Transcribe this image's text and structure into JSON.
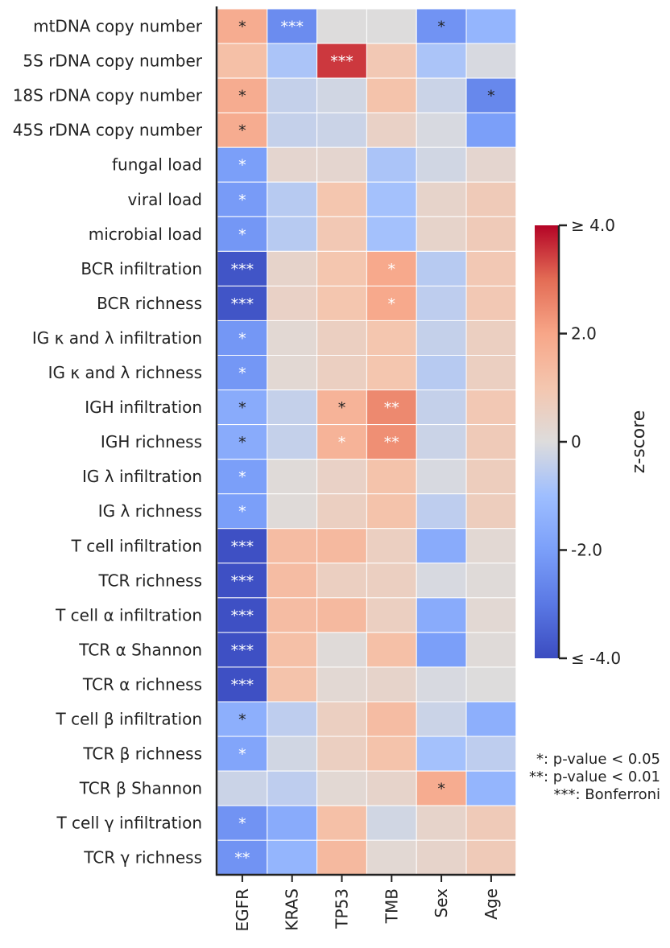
{
  "chart_data": {
    "type": "heatmap",
    "rows": [
      "mtDNA copy number",
      "5S rDNA copy number",
      "18S rDNA copy number",
      "45S rDNA copy number",
      "fungal load",
      "viral load",
      "microbial load",
      "BCR infiltration",
      "BCR richness",
      "IG κ and λ infiltration",
      "IG κ and λ richness",
      "IGH infiltration",
      "IGH richness",
      "IG λ infiltration",
      "IG λ richness",
      "T cell infiltration",
      "TCR richness",
      "T cell α infiltration",
      "TCR α Shannon",
      "TCR α richness",
      "T cell β infiltration",
      "TCR β richness",
      "TCR β Shannon",
      "T cell γ infiltration",
      "TCR γ richness"
    ],
    "columns": [
      "EGFR",
      "KRAS",
      "TP53",
      "TMB",
      "Sex",
      "Age"
    ],
    "values": [
      [
        1.8,
        -2.5,
        0.0,
        0.0,
        -2.3,
        -1.3
      ],
      [
        1.2,
        -0.8,
        3.5,
        0.9,
        -0.8,
        -0.1
      ],
      [
        1.8,
        -0.4,
        -0.2,
        1.1,
        -0.3,
        -2.6
      ],
      [
        1.8,
        -0.4,
        -0.3,
        0.5,
        -0.1,
        -2.0
      ],
      [
        -2.0,
        0.3,
        0.3,
        -0.8,
        -0.2,
        0.3
      ],
      [
        -2.1,
        -0.6,
        1.0,
        -0.9,
        0.4,
        0.8
      ],
      [
        -2.2,
        -0.6,
        0.9,
        -0.9,
        0.4,
        0.8
      ],
      [
        -3.8,
        0.4,
        1.0,
        1.9,
        -0.6,
        0.9
      ],
      [
        -3.8,
        0.5,
        1.0,
        1.9,
        -0.5,
        0.9
      ],
      [
        -2.2,
        0.2,
        0.6,
        1.0,
        -0.4,
        0.6
      ],
      [
        -2.2,
        0.2,
        0.6,
        1.0,
        -0.6,
        0.6
      ],
      [
        -1.6,
        -0.4,
        1.6,
        2.5,
        -0.4,
        0.9
      ],
      [
        -1.6,
        -0.4,
        1.6,
        2.4,
        -0.3,
        0.8
      ],
      [
        -2.0,
        0.1,
        0.5,
        1.1,
        -0.1,
        0.7
      ],
      [
        -2.0,
        0.1,
        0.6,
        1.1,
        -0.5,
        0.7
      ],
      [
        -3.9,
        1.3,
        1.4,
        0.6,
        -1.6,
        0.2
      ],
      [
        -3.9,
        1.3,
        0.6,
        0.6,
        -0.1,
        0.1
      ],
      [
        -3.9,
        1.3,
        1.4,
        0.6,
        -1.6,
        0.2
      ],
      [
        -3.9,
        1.2,
        0.1,
        1.2,
        -2.0,
        0.1
      ],
      [
        -3.9,
        1.1,
        0.2,
        0.4,
        -0.1,
        0.0
      ],
      [
        -1.5,
        -0.5,
        0.6,
        1.3,
        -0.3,
        -1.5
      ],
      [
        -1.8,
        -0.2,
        0.6,
        1.1,
        -0.9,
        -0.5
      ],
      [
        -0.3,
        -0.5,
        0.2,
        0.4,
        1.8,
        -1.3
      ],
      [
        -2.3,
        -1.6,
        1.2,
        -0.2,
        0.4,
        0.8
      ],
      [
        -2.3,
        -1.3,
        1.4,
        0.2,
        0.4,
        0.8
      ]
    ],
    "annotations": [
      [
        "*",
        "***",
        "",
        "",
        "*",
        ""
      ],
      [
        "",
        "",
        "***",
        "",
        "",
        ""
      ],
      [
        "*",
        "",
        "",
        "",
        "",
        "*"
      ],
      [
        "*",
        "",
        "",
        "",
        "",
        ""
      ],
      [
        "*",
        "",
        "",
        "",
        "",
        ""
      ],
      [
        "*",
        "",
        "",
        "",
        "",
        ""
      ],
      [
        "*",
        "",
        "",
        "",
        "",
        ""
      ],
      [
        "***",
        "",
        "",
        "*",
        "",
        ""
      ],
      [
        "***",
        "",
        "",
        "*",
        "",
        ""
      ],
      [
        "*",
        "",
        "",
        "",
        "",
        ""
      ],
      [
        "*",
        "",
        "",
        "",
        "",
        ""
      ],
      [
        "*",
        "",
        "*",
        "**",
        "",
        ""
      ],
      [
        "*",
        "",
        "*",
        "**",
        "",
        ""
      ],
      [
        "*",
        "",
        "",
        "",
        "",
        ""
      ],
      [
        "*",
        "",
        "",
        "",
        "",
        ""
      ],
      [
        "***",
        "",
        "",
        "",
        "",
        ""
      ],
      [
        "***",
        "",
        "",
        "",
        "",
        ""
      ],
      [
        "***",
        "",
        "",
        "",
        "",
        ""
      ],
      [
        "***",
        "",
        "",
        "",
        "",
        ""
      ],
      [
        "***",
        "",
        "",
        "",
        "",
        ""
      ],
      [
        "*",
        "",
        "",
        "",
        "",
        ""
      ],
      [
        "*",
        "",
        "",
        "",
        "",
        ""
      ],
      [
        "",
        "",
        "",
        "",
        "*",
        ""
      ],
      [
        "*",
        "",
        "",
        "",
        "",
        ""
      ],
      [
        "**",
        "",
        "",
        "",
        "",
        ""
      ]
    ],
    "annotation_text_colors": [
      [
        "dark",
        "light",
        "",
        "",
        "dark",
        ""
      ],
      [
        "",
        "",
        "light",
        "",
        "",
        ""
      ],
      [
        "dark",
        "",
        "",
        "",
        "",
        "dark"
      ],
      [
        "dark",
        "",
        "",
        "",
        "",
        ""
      ],
      [
        "light",
        "",
        "",
        "",
        "",
        ""
      ],
      [
        "light",
        "",
        "",
        "",
        "",
        ""
      ],
      [
        "light",
        "",
        "",
        "",
        "",
        ""
      ],
      [
        "light",
        "",
        "",
        "light",
        "",
        ""
      ],
      [
        "light",
        "",
        "",
        "light",
        "",
        ""
      ],
      [
        "light",
        "",
        "",
        "",
        "",
        ""
      ],
      [
        "light",
        "",
        "",
        "",
        "",
        ""
      ],
      [
        "dark",
        "",
        "dark",
        "light",
        "",
        ""
      ],
      [
        "dark",
        "",
        "light",
        "light",
        "",
        ""
      ],
      [
        "light",
        "",
        "",
        "",
        "",
        ""
      ],
      [
        "light",
        "",
        "",
        "",
        "",
        ""
      ],
      [
        "light",
        "",
        "",
        "",
        "",
        ""
      ],
      [
        "light",
        "",
        "",
        "",
        "",
        ""
      ],
      [
        "light",
        "",
        "",
        "",
        "",
        ""
      ],
      [
        "light",
        "",
        "",
        "",
        "",
        ""
      ],
      [
        "light",
        "",
        "",
        "",
        "",
        ""
      ],
      [
        "dark",
        "",
        "",
        "",
        "",
        ""
      ],
      [
        "light",
        "",
        "",
        "",
        "",
        ""
      ],
      [
        "",
        "",
        "",
        "",
        "dark",
        ""
      ],
      [
        "light",
        "",
        "",
        "",
        "",
        ""
      ],
      [
        "light",
        "",
        "",
        "",
        "",
        ""
      ]
    ],
    "colormap": "coolwarm",
    "vmin": -4.0,
    "vmax": 4.0,
    "colorbar": {
      "label": "z-score",
      "tick_values": [
        4.0,
        2.0,
        0.0,
        -2.0,
        -4.0
      ],
      "tick_labels": [
        "≥ 4.0",
        "2.0",
        "0",
        "-2.0",
        "≤ -4.0"
      ]
    },
    "significance_legend": [
      "*: p-value < 0.05",
      "**: p-value < 0.01",
      "***: Bonferroni"
    ]
  }
}
